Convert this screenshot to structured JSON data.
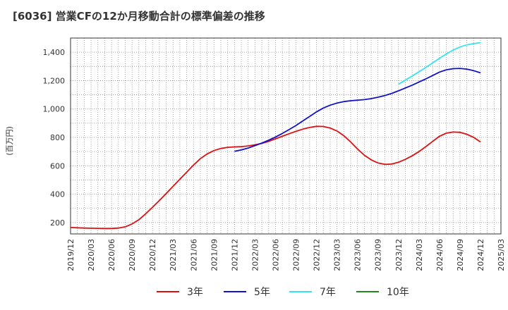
{
  "chart_data": {
    "type": "line",
    "title": "[6036]  営業CFの12か月移動合計の標準偏差の推移",
    "ylabel": "(百万円)",
    "xlabel": "",
    "ylim": [
      120,
      1500
    ],
    "yticks": [
      200,
      400,
      600,
      800,
      1000,
      1200,
      1400
    ],
    "ytick_labels": [
      "200",
      "400",
      "600",
      "800",
      "1,000",
      "1,200",
      "1,400"
    ],
    "x_range": [
      "2019-12",
      "2025-03"
    ],
    "xticks": [
      "2019/12",
      "2020/03",
      "2020/06",
      "2020/09",
      "2020/12",
      "2021/03",
      "2021/06",
      "2021/09",
      "2021/12",
      "2022/03",
      "2022/06",
      "2022/09",
      "2022/12",
      "2023/03",
      "2023/06",
      "2023/09",
      "2023/12",
      "2024/03",
      "2024/06",
      "2024/09",
      "2024/12",
      "2025/03"
    ],
    "grid": true,
    "legend_position": "bottom",
    "series": [
      {
        "name": "3年",
        "color": "#dd1111",
        "points": [
          [
            "2019-12",
            165
          ],
          [
            "2020-01",
            163
          ],
          [
            "2020-02",
            161
          ],
          [
            "2020-03",
            160
          ],
          [
            "2020-04",
            159
          ],
          [
            "2020-05",
            158
          ],
          [
            "2020-06",
            158
          ],
          [
            "2020-07",
            161
          ],
          [
            "2020-08",
            170
          ],
          [
            "2020-09",
            190
          ],
          [
            "2020-10",
            220
          ],
          [
            "2020-11",
            262
          ],
          [
            "2020-12",
            308
          ],
          [
            "2021-01",
            356
          ],
          [
            "2021-02",
            405
          ],
          [
            "2021-03",
            455
          ],
          [
            "2021-04",
            505
          ],
          [
            "2021-05",
            555
          ],
          [
            "2021-06",
            605
          ],
          [
            "2021-07",
            650
          ],
          [
            "2021-08",
            684
          ],
          [
            "2021-09",
            707
          ],
          [
            "2021-10",
            722
          ],
          [
            "2021-11",
            730
          ],
          [
            "2021-12",
            733
          ],
          [
            "2022-01",
            735
          ],
          [
            "2022-02",
            740
          ],
          [
            "2022-03",
            748
          ],
          [
            "2022-04",
            758
          ],
          [
            "2022-05",
            772
          ],
          [
            "2022-06",
            790
          ],
          [
            "2022-07",
            808
          ],
          [
            "2022-08",
            826
          ],
          [
            "2022-09",
            843
          ],
          [
            "2022-10",
            858
          ],
          [
            "2022-11",
            870
          ],
          [
            "2022-12",
            878
          ],
          [
            "2023-01",
            877
          ],
          [
            "2023-02",
            866
          ],
          [
            "2023-03",
            845
          ],
          [
            "2023-04",
            812
          ],
          [
            "2023-05",
            768
          ],
          [
            "2023-06",
            718
          ],
          [
            "2023-07",
            675
          ],
          [
            "2023-08",
            642
          ],
          [
            "2023-09",
            620
          ],
          [
            "2023-10",
            610
          ],
          [
            "2023-11",
            612
          ],
          [
            "2023-12",
            625
          ],
          [
            "2024-01",
            645
          ],
          [
            "2024-02",
            670
          ],
          [
            "2024-03",
            700
          ],
          [
            "2024-04",
            735
          ],
          [
            "2024-05",
            772
          ],
          [
            "2024-06",
            808
          ],
          [
            "2024-07",
            830
          ],
          [
            "2024-08",
            838
          ],
          [
            "2024-09",
            836
          ],
          [
            "2024-10",
            822
          ],
          [
            "2024-11",
            800
          ],
          [
            "2024-12",
            768
          ]
        ]
      },
      {
        "name": "5年",
        "color": "#1111cc",
        "points": [
          [
            "2021-12",
            702
          ],
          [
            "2022-01",
            712
          ],
          [
            "2022-02",
            725
          ],
          [
            "2022-03",
            742
          ],
          [
            "2022-04",
            760
          ],
          [
            "2022-05",
            780
          ],
          [
            "2022-06",
            803
          ],
          [
            "2022-07",
            828
          ],
          [
            "2022-08",
            855
          ],
          [
            "2022-09",
            884
          ],
          [
            "2022-10",
            916
          ],
          [
            "2022-11",
            948
          ],
          [
            "2022-12",
            980
          ],
          [
            "2023-01",
            1007
          ],
          [
            "2023-02",
            1027
          ],
          [
            "2023-03",
            1042
          ],
          [
            "2023-04",
            1052
          ],
          [
            "2023-05",
            1058
          ],
          [
            "2023-06",
            1062
          ],
          [
            "2023-07",
            1066
          ],
          [
            "2023-08",
            1073
          ],
          [
            "2023-09",
            1083
          ],
          [
            "2023-10",
            1095
          ],
          [
            "2023-11",
            1110
          ],
          [
            "2023-12",
            1128
          ],
          [
            "2024-01",
            1148
          ],
          [
            "2024-02",
            1168
          ],
          [
            "2024-03",
            1190
          ],
          [
            "2024-04",
            1212
          ],
          [
            "2024-05",
            1236
          ],
          [
            "2024-06",
            1260
          ],
          [
            "2024-07",
            1276
          ],
          [
            "2024-08",
            1284
          ],
          [
            "2024-09",
            1286
          ],
          [
            "2024-10",
            1281
          ],
          [
            "2024-11",
            1270
          ],
          [
            "2024-12",
            1255
          ]
        ]
      },
      {
        "name": "7年",
        "color": "#33e5ee",
        "points": [
          [
            "2023-12",
            1175
          ],
          [
            "2024-01",
            1203
          ],
          [
            "2024-02",
            1232
          ],
          [
            "2024-03",
            1262
          ],
          [
            "2024-04",
            1293
          ],
          [
            "2024-05",
            1325
          ],
          [
            "2024-06",
            1357
          ],
          [
            "2024-07",
            1388
          ],
          [
            "2024-08",
            1415
          ],
          [
            "2024-09",
            1437
          ],
          [
            "2024-10",
            1452
          ],
          [
            "2024-11",
            1461
          ],
          [
            "2024-12",
            1467
          ]
        ]
      },
      {
        "name": "10年",
        "color": "#228822",
        "points": []
      }
    ]
  }
}
